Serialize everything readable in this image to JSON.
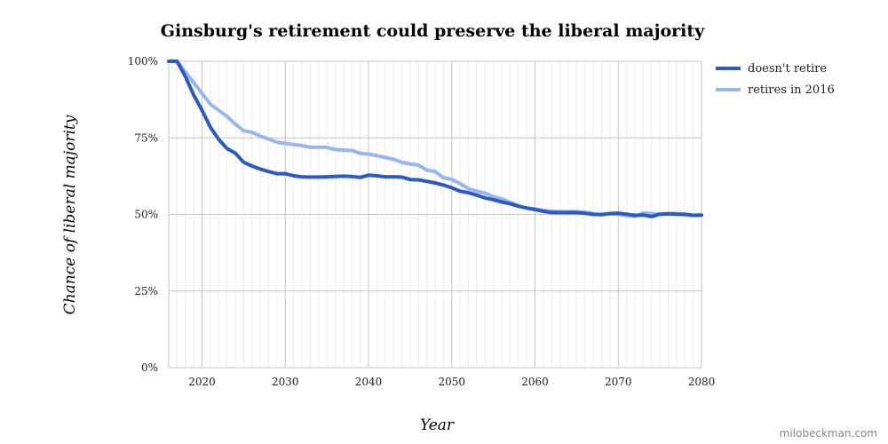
{
  "chart_data": {
    "type": "line",
    "title": "Ginsburg's retirement could preserve the liberal majority",
    "xlabel": "Year",
    "ylabel": "Chance of liberal majority",
    "xlim": [
      2016,
      2080
    ],
    "ylim": [
      0,
      100
    ],
    "x_ticks": [
      "2020",
      "2030",
      "2040",
      "2050",
      "2060",
      "2070",
      "2080"
    ],
    "y_ticks": [
      "0%",
      "25%",
      "50%",
      "75%",
      "100%"
    ],
    "legend_position": "right",
    "grid": true,
    "series": [
      {
        "name": "doesn't retire",
        "color": "#2b5ac5",
        "x": [
          2016,
          2017,
          2018,
          2019,
          2020,
          2021,
          2022,
          2023,
          2024,
          2025,
          2026,
          2027,
          2028,
          2029,
          2030,
          2031,
          2032,
          2033,
          2034,
          2035,
          2036,
          2037,
          2038,
          2039,
          2040,
          2041,
          2042,
          2043,
          2044,
          2045,
          2046,
          2047,
          2048,
          2049,
          2050,
          2051,
          2052,
          2053,
          2054,
          2055,
          2056,
          2057,
          2058,
          2059,
          2060,
          2061,
          2062,
          2063,
          2064,
          2065,
          2066,
          2067,
          2068,
          2069,
          2070,
          2071,
          2072,
          2073,
          2074,
          2075,
          2076,
          2077,
          2078,
          2079,
          2080
        ],
        "values": [
          100,
          100,
          95,
          89,
          84,
          78.5,
          74.5,
          71.5,
          70,
          67,
          65.8,
          64.8,
          64,
          63.3,
          63.3,
          62.6,
          62.3,
          62.2,
          62.2,
          62.3,
          62.4,
          62.5,
          62.4,
          62.1,
          62.8,
          62.6,
          62.3,
          62.3,
          62.2,
          61.4,
          61.3,
          60.8,
          60.3,
          59.6,
          58.7,
          57.6,
          57.1,
          56.3,
          55.4,
          54.8,
          54.1,
          53.5,
          52.7,
          52.1,
          51.6,
          51,
          50.6,
          50.6,
          50.6,
          50.6,
          50.4,
          50,
          50,
          50.3,
          50.4,
          50.1,
          49.7,
          49.8,
          49.3,
          50.1,
          50.2,
          50.1,
          50.1,
          49.7,
          49.8
        ]
      },
      {
        "name": "retires in 2016",
        "color": "#97b6ef",
        "x": [
          2016,
          2017,
          2018,
          2019,
          2020,
          2021,
          2022,
          2023,
          2024,
          2025,
          2026,
          2027,
          2028,
          2029,
          2030,
          2031,
          2032,
          2033,
          2034,
          2035,
          2036,
          2037,
          2038,
          2039,
          2040,
          2041,
          2042,
          2043,
          2044,
          2045,
          2046,
          2047,
          2048,
          2049,
          2050,
          2051,
          2052,
          2053,
          2054,
          2055,
          2056,
          2057,
          2058,
          2059,
          2060,
          2061,
          2062,
          2063,
          2064,
          2065,
          2066,
          2067,
          2068,
          2069,
          2070,
          2071,
          2072,
          2073,
          2074,
          2075,
          2076,
          2077,
          2078,
          2079,
          2080
        ],
        "values": [
          100,
          100,
          96.5,
          93,
          89.5,
          86,
          84,
          82,
          79.5,
          77.3,
          76.8,
          75.6,
          74.6,
          73.6,
          73.2,
          72.8,
          72.5,
          71.9,
          71.9,
          71.9,
          71.2,
          71,
          70.9,
          69.9,
          69.7,
          69.2,
          68.6,
          68,
          67,
          66.5,
          66.1,
          64.5,
          64,
          62,
          61.4,
          60.1,
          58.4,
          57.6,
          57,
          55.8,
          55.1,
          54,
          52.8,
          52.1,
          51.8,
          51.3,
          51,
          50.9,
          50.9,
          50.9,
          50.7,
          50.3,
          49.8,
          50.3,
          50.1,
          49.6,
          49.4,
          50.5,
          50.3,
          50.1,
          50.3,
          50.3,
          49.8,
          49.7,
          49.8
        ]
      }
    ]
  },
  "credit": "milobeckman.com"
}
